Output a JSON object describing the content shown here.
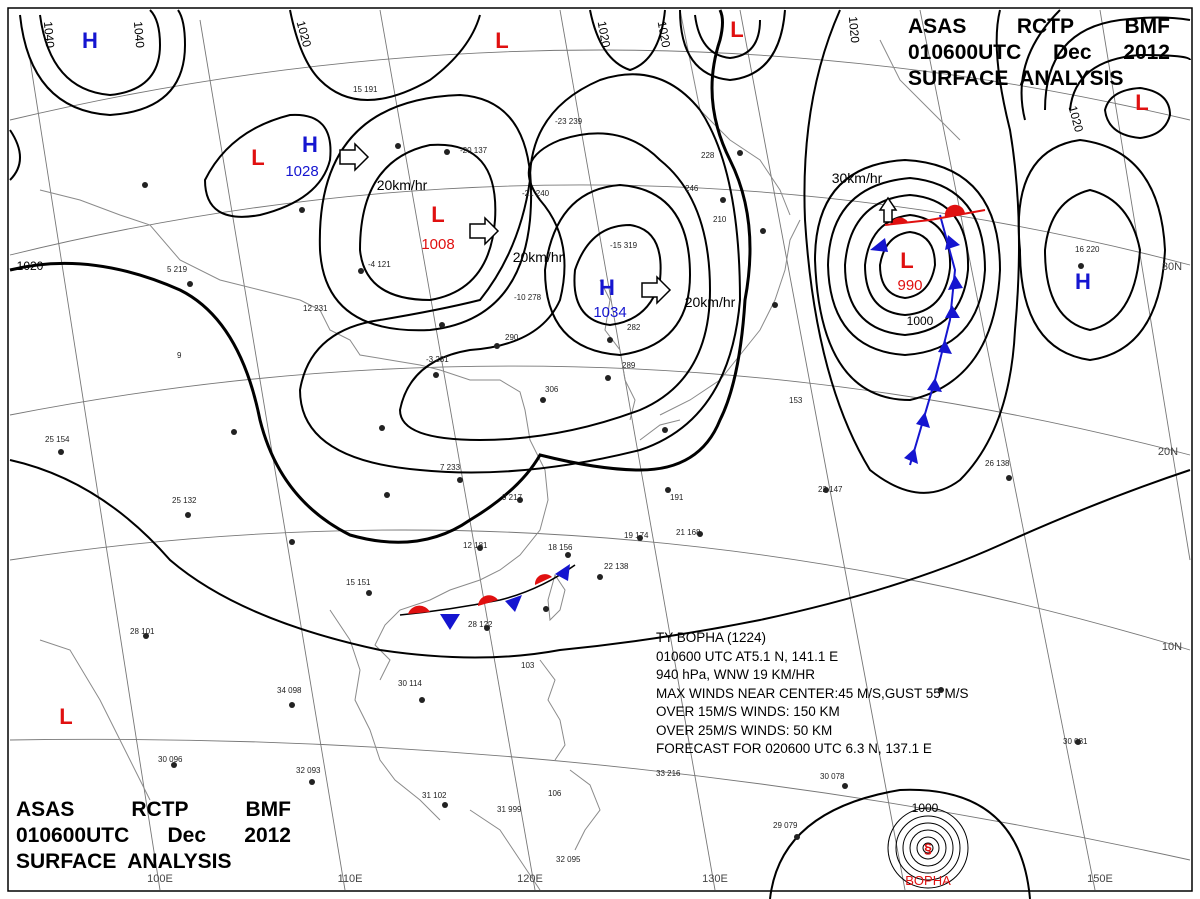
{
  "header_top": {
    "line1": [
      "ASAS",
      "RCTP",
      "BMF"
    ],
    "line2": [
      "010600UTC",
      "Dec",
      "2012"
    ],
    "line3": "SURFACE  ANALYSIS"
  },
  "header_bottom": {
    "line1": [
      "ASAS",
      "RCTP",
      "BMF"
    ],
    "line2": [
      "010600UTC",
      "Dec",
      "2012"
    ],
    "line3": "SURFACE  ANALYSIS"
  },
  "typhoon_box": {
    "lines": [
      "TY  BOPHA  (1224)",
      "010600 UTC  AT5.1 N, 141.1 E",
      "940 hPa, WNW  19 KM/HR",
      "MAX WINDS NEAR CENTER:45 M/S,GUST 55 M/S",
      "OVER 15M/S WINDS: 150 KM",
      "OVER 25M/S WINDS: 50 KM",
      "FORECAST FOR 020600 UTC 6.3 N, 137.1 E"
    ]
  },
  "typhoon_name": "BOPHA",
  "pressure_centers": [
    {
      "type": "H",
      "value": "",
      "color": "#1515d0"
    },
    {
      "type": "H",
      "value": "1028",
      "color": "#1515d0"
    },
    {
      "type": "H",
      "value": "1034",
      "color": "#1515d0"
    },
    {
      "type": "H",
      "value": "",
      "color": "#1515d0"
    },
    {
      "type": "L",
      "value": "1008",
      "color": "#e01010"
    },
    {
      "type": "L",
      "value": "",
      "color": "#e01010"
    },
    {
      "type": "L",
      "value": "",
      "color": "#e01010"
    },
    {
      "type": "L",
      "value": "990",
      "color": "#e01010"
    },
    {
      "type": "L",
      "value": "",
      "color": "#e01010"
    },
    {
      "type": "L",
      "value": "",
      "color": "#e01010"
    },
    {
      "type": "L",
      "value": "",
      "color": "#e01010"
    }
  ],
  "isobar_labels": [
    "1040",
    "1040",
    "1020",
    "1020",
    "1020",
    "1020",
    "1020",
    "1020",
    "1000",
    "1000"
  ],
  "motion_labels": [
    "20km/hr",
    "20km/hr",
    "20km/hr",
    "30km/hr"
  ],
  "latitude_labels": [
    "30N",
    "20N",
    "10N"
  ],
  "longitude_labels": [
    "100E",
    "110E",
    "120E",
    "130E",
    "150E"
  ],
  "station_labels": [
    "25 154",
    "25 132",
    "28 101",
    "30 114",
    "34 098",
    "32 093",
    "31 102",
    "31 999",
    "30 096",
    "26 138",
    "22 147",
    "16 220",
    "15 191",
    "12 231",
    "5 219",
    "9",
    "7 233",
    "9 217",
    "12 181",
    "19 174",
    "21 168",
    "18 156",
    "22 138",
    "15 151",
    "28 122",
    "29 079",
    "30 078",
    "33 216",
    "30 081",
    "32 095",
    "-10 278",
    "-15 319",
    "-23 239",
    "-21 240",
    "-20 137",
    "-3 281",
    "-4 121",
    "290",
    "306",
    "289",
    "282",
    "210",
    "228",
    "246",
    "153",
    "191",
    "103",
    "106"
  ],
  "colors": {
    "isobar": "#000000",
    "high": "#1515d0",
    "low": "#e01010",
    "cold_front": "#1515d0",
    "warm_front": "#e01010",
    "grid": "#777777",
    "coast": "#888888"
  }
}
